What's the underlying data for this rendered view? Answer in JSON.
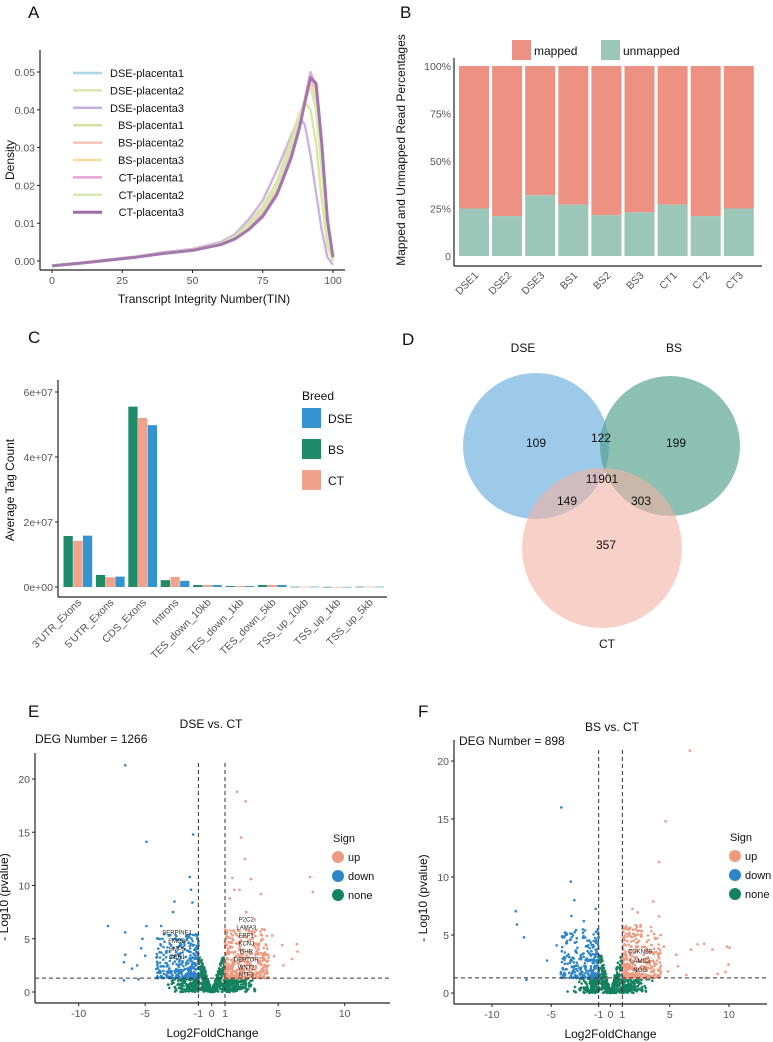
{
  "panel_letters": [
    "A",
    "B",
    "C",
    "D",
    "E",
    "F"
  ],
  "chart_data": [
    {
      "panel": "A",
      "type": "line",
      "xlabel": "Transcript Integrity Number(TIN)",
      "ylabel": "Density",
      "xlim": [
        0,
        100
      ],
      "ylim": [
        0,
        0.05
      ],
      "xticks": [
        "0",
        "25",
        "50",
        "75",
        "100"
      ],
      "yticks": [
        "0.00",
        "0.01",
        "0.02",
        "0.03",
        "0.04",
        "0.05"
      ],
      "legend_position": "top-left",
      "x": [
        0,
        10,
        20,
        30,
        40,
        50,
        60,
        65,
        70,
        75,
        80,
        85,
        88,
        90,
        92,
        94,
        96,
        98,
        100
      ],
      "series": [
        {
          "name": "DSE-placenta1",
          "color": "#a9d6e4",
          "values": [
            -0.0012,
            -0.0005,
            0.0003,
            0.0011,
            0.0022,
            0.003,
            0.0045,
            0.0062,
            0.009,
            0.013,
            0.019,
            0.029,
            0.037,
            0.043,
            0.047,
            0.042,
            0.026,
            0.009,
            0.0
          ]
        },
        {
          "name": "DSE-placenta2",
          "color": "#dce6ad",
          "values": [
            -0.0012,
            -0.0005,
            0.0003,
            0.0011,
            0.0022,
            0.003,
            0.0045,
            0.0063,
            0.0092,
            0.0135,
            0.0195,
            0.03,
            0.038,
            0.043,
            0.046,
            0.04,
            0.024,
            0.008,
            0.0
          ]
        },
        {
          "name": "DSE-placenta3",
          "color": "#c9acd9",
          "values": [
            -0.0012,
            -0.0005,
            0.0004,
            0.0012,
            0.0024,
            0.0032,
            0.005,
            0.007,
            0.011,
            0.016,
            0.024,
            0.033,
            0.038,
            0.036,
            0.028,
            0.018,
            0.008,
            0.001,
            -0.001
          ]
        },
        {
          "name": "BS-placenta1",
          "color": "#d6e29c",
          "values": [
            -0.0012,
            -0.0005,
            0.0003,
            0.0011,
            0.0022,
            0.003,
            0.0046,
            0.0065,
            0.01,
            0.0145,
            0.021,
            0.032,
            0.039,
            0.042,
            0.04,
            0.031,
            0.016,
            0.004,
            0.0
          ]
        },
        {
          "name": "BS-placenta2",
          "color": "#f4c2b3",
          "values": [
            -0.0012,
            -0.0005,
            0.0003,
            0.0011,
            0.0022,
            0.003,
            0.0045,
            0.006,
            0.0088,
            0.0125,
            0.0185,
            0.028,
            0.036,
            0.042,
            0.048,
            0.045,
            0.029,
            0.01,
            0.001
          ]
        },
        {
          "name": "BS-placenta3",
          "color": "#f6da9e",
          "values": [
            -0.0012,
            -0.0005,
            0.0003,
            0.0011,
            0.0022,
            0.003,
            0.0045,
            0.0062,
            0.009,
            0.013,
            0.019,
            0.029,
            0.037,
            0.043,
            0.047,
            0.043,
            0.027,
            0.009,
            0.0
          ]
        },
        {
          "name": "CT-placenta1",
          "color": "#e6a3d5",
          "values": [
            -0.0012,
            -0.0005,
            0.0003,
            0.0011,
            0.0022,
            0.003,
            0.0045,
            0.006,
            0.0087,
            0.0123,
            0.018,
            0.028,
            0.036,
            0.043,
            0.05,
            0.046,
            0.029,
            0.01,
            0.001
          ]
        },
        {
          "name": "CT-placenta2",
          "color": "#d6e9b3",
          "values": [
            -0.0012,
            -0.0005,
            0.0003,
            0.0011,
            0.0022,
            0.003,
            0.0045,
            0.0063,
            0.0092,
            0.0135,
            0.0195,
            0.03,
            0.038,
            0.043,
            0.046,
            0.041,
            0.025,
            0.008,
            0.0
          ]
        },
        {
          "name": "CT-placenta3",
          "color": "#9c6bab",
          "values": [
            -0.0013,
            -0.0006,
            0.0002,
            0.001,
            0.002,
            0.0028,
            0.0043,
            0.0058,
            0.0083,
            0.0118,
            0.0175,
            0.027,
            0.035,
            0.042,
            0.0485,
            0.047,
            0.031,
            0.011,
            0.001
          ]
        }
      ]
    },
    {
      "panel": "B",
      "type": "bar",
      "stacked": true,
      "ylabel": "Mapped and Unmapped Read Percentages",
      "ylim": [
        0,
        100
      ],
      "yticks": [
        "0",
        "25%",
        "50%",
        "75%",
        "100%"
      ],
      "legend_position": "top",
      "categories": [
        "DSE1",
        "DSE2",
        "DSE3",
        "BS1",
        "BS2",
        "BS3",
        "CT1",
        "CT2",
        "CT3"
      ],
      "series": [
        {
          "name": "mapped",
          "color": "#ed9183",
          "values": [
            75,
            79,
            68,
            73,
            78.5,
            77,
            73,
            79,
            75
          ]
        },
        {
          "name": "unmapped",
          "color": "#9cc6b7",
          "values": [
            25,
            21,
            32,
            27,
            21.5,
            23,
            27,
            21,
            25
          ]
        }
      ]
    },
    {
      "panel": "C",
      "type": "bar",
      "ylabel": "Average Tag Count",
      "ylim": [
        0,
        60000000
      ],
      "yticks": [
        "0e+00",
        "2e+07",
        "4e+07",
        "6e+07"
      ],
      "legend_title": "Breed",
      "legend_position": "right",
      "categories": [
        "3'UTR_Exons",
        "5'UTR_Exons",
        "CDS_Exons",
        "Introns",
        "TES_down_10kb",
        "TES_down_1kb",
        "TES_down_5kb",
        "TSS_up_10kb",
        "TSS_up_1kb",
        "TSS_up_5kb"
      ],
      "series": [
        {
          "name": "BS",
          "color": "#1f8a6a",
          "values": [
            15700000,
            3700000,
            55500000,
            2100000,
            600000,
            300000,
            600000,
            100000,
            50000,
            100000
          ]
        },
        {
          "name": "CT",
          "color": "#f0a38c",
          "values": [
            14200000,
            3000000,
            52000000,
            3100000,
            600000,
            300000,
            600000,
            100000,
            50000,
            100000
          ]
        },
        {
          "name": "DSE",
          "color": "#3493d1",
          "values": [
            15800000,
            3200000,
            49800000,
            1900000,
            600000,
            300000,
            600000,
            100000,
            50000,
            100000
          ]
        }
      ],
      "legend_order": [
        "DSE",
        "BS",
        "CT"
      ]
    },
    {
      "panel": "D",
      "type": "venn",
      "sets": [
        {
          "name": "DSE",
          "color": "#6aaedd"
        },
        {
          "name": "BS",
          "color": "#4f9e88"
        },
        {
          "name": "CT",
          "color": "#f2b0a4"
        }
      ],
      "regions": {
        "DSE_only": "109",
        "BS_only": "199",
        "CT_only": "357",
        "DSE_BS": "122",
        "DSE_CT": "149",
        "BS_CT": "303",
        "all": "11901"
      }
    },
    {
      "panel": "E",
      "type": "scatter",
      "title": "DSE vs. CT",
      "annotation": "DEG Number = 1266",
      "xlabel": "Log2FoldChange",
      "ylabel": "- Log10 (pvalue)",
      "xlim": [
        -13,
        13
      ],
      "ylim": [
        -1,
        22
      ],
      "xticks": [
        "-10",
        "-5",
        "-1",
        "0",
        "1",
        "5",
        "10"
      ],
      "xtick_values": [
        -10,
        -5,
        -1,
        0,
        1,
        5,
        10
      ],
      "yticks": [
        "0",
        "5",
        "10",
        "15",
        "20"
      ],
      "thresholds": {
        "log2fc": [
          -1,
          1
        ],
        "neglog10p": 1.3
      },
      "legend_title": "Sign",
      "legend": [
        {
          "name": "up",
          "color": "#ee9a80"
        },
        {
          "name": "down",
          "color": "#2e86c8"
        },
        {
          "name": "none",
          "color": "#14825e"
        }
      ],
      "gene_labels": [
        "P2C2",
        "LAMA3",
        "FMOD",
        "EBF1",
        "SERPINE1",
        "BMP5",
        "KCNJ",
        "GHR",
        "DEPTOR",
        "WNT2",
        "CER1",
        "NTF3"
      ],
      "points": {
        "down": [
          [
            -6.5,
            21.3
          ],
          [
            -4.9,
            14.1
          ],
          [
            -1.4,
            14.8
          ],
          [
            -1.65,
            10.8
          ],
          [
            -1.55,
            9.6
          ],
          [
            -2.8,
            8.5
          ],
          [
            -1.45,
            8.4
          ],
          [
            -2.9,
            7.5
          ],
          [
            -7.8,
            6.2
          ],
          [
            -4.9,
            6.2
          ],
          [
            -6.5,
            5.6
          ],
          [
            -3.8,
            6.2
          ],
          [
            -5.2,
            5.0
          ],
          [
            -5.3,
            4.1
          ],
          [
            -6.5,
            3.5
          ],
          [
            -5.0,
            3.4
          ],
          [
            -6.6,
            2.8
          ],
          [
            -5.6,
            2.5
          ],
          [
            -6.0,
            2.2
          ],
          [
            -6.6,
            1.1
          ],
          [
            -5.5,
            1.2
          ]
        ],
        "up": [
          [
            1.9,
            18.8
          ],
          [
            2.55,
            17.9
          ],
          [
            2.2,
            14.5
          ],
          [
            2.5,
            12.5
          ],
          [
            1.55,
            10.7
          ],
          [
            2.95,
            10.6
          ],
          [
            7.4,
            10.8
          ],
          [
            7.6,
            9.4
          ],
          [
            3.7,
            9.2
          ],
          [
            2.1,
            9.6
          ],
          [
            1.7,
            9.6
          ],
          [
            1.35,
            8.8
          ],
          [
            2.6,
            7.5
          ],
          [
            3.25,
            6.8
          ],
          [
            4.55,
            5.3
          ],
          [
            5.3,
            4.4
          ],
          [
            6.4,
            4.5
          ],
          [
            6.45,
            3.8
          ],
          [
            6.05,
            3.1
          ],
          [
            5.4,
            2.5
          ],
          [
            4.7,
            3.35
          ]
        ]
      }
    },
    {
      "panel": "F",
      "type": "scatter",
      "title": "BS vs. CT",
      "annotation": "DEG Number = 898",
      "xlabel": "Log2FoldChange",
      "ylabel": "- Log10 (pvalue)",
      "xlim": [
        -13,
        13
      ],
      "ylim": [
        -1,
        22
      ],
      "xticks": [
        "-10",
        "-5",
        "-1",
        "0",
        "1",
        "5",
        "10"
      ],
      "xtick_values": [
        -10,
        -5,
        -1,
        0,
        1,
        5,
        10
      ],
      "yticks": [
        "0",
        "5",
        "10",
        "15",
        "20"
      ],
      "thresholds": {
        "log2fc": [
          -1,
          1
        ],
        "neglog10p": 1.3
      },
      "legend_title": "Sign",
      "legend": [
        {
          "name": "up",
          "color": "#ee9a80"
        },
        {
          "name": "down",
          "color": "#2e86c8"
        },
        {
          "name": "none",
          "color": "#14825e"
        }
      ],
      "gene_labels": [
        "CDKN2B",
        "LAMC3",
        "NOG"
      ],
      "points": {
        "down": [
          [
            -4.15,
            16.0
          ],
          [
            -3.35,
            9.6
          ],
          [
            -3.05,
            8.0
          ],
          [
            -8.0,
            7.05
          ],
          [
            -7.9,
            5.9
          ],
          [
            -7.3,
            4.8
          ],
          [
            -1.25,
            7.25
          ],
          [
            -3.3,
            6.65
          ],
          [
            -2.25,
            6.2
          ],
          [
            -5.35,
            2.8
          ],
          [
            -4.55,
            4.1
          ],
          [
            -7.1,
            1.15
          ]
        ],
        "up": [
          [
            6.7,
            20.9
          ],
          [
            4.65,
            14.8
          ],
          [
            4.1,
            11.3
          ],
          [
            3.6,
            7.9
          ],
          [
            4.1,
            6.6
          ],
          [
            1.85,
            7.25
          ],
          [
            2.3,
            6.95
          ],
          [
            4.5,
            4.0
          ],
          [
            5.55,
            3.3
          ],
          [
            6.8,
            3.75
          ],
          [
            7.35,
            4.2
          ],
          [
            7.9,
            4.25
          ],
          [
            8.6,
            3.75
          ],
          [
            9.85,
            4.0
          ],
          [
            10.05,
            3.9
          ],
          [
            9.95,
            2.45
          ],
          [
            5.7,
            2.3
          ],
          [
            4.85,
            1.85
          ],
          [
            6.4,
            1.55
          ],
          [
            9.05,
            1.65
          ],
          [
            9.7,
            1.8
          ],
          [
            8.05,
            1.3
          ]
        ]
      }
    }
  ]
}
